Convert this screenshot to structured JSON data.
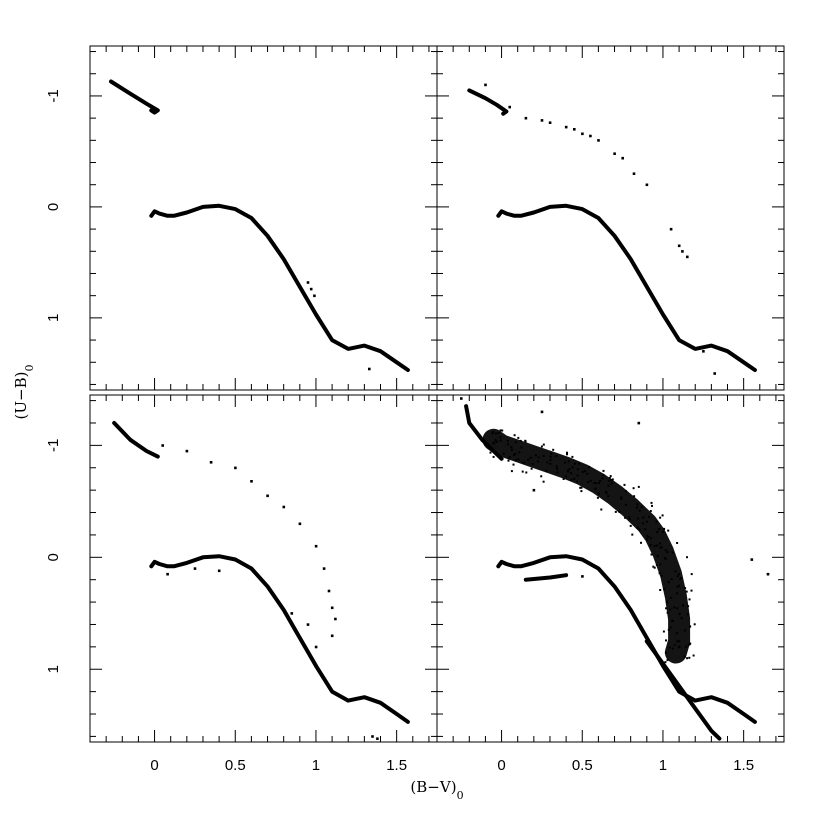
{
  "chart_data": [
    {
      "type": "scatter",
      "panel": "top-left",
      "xlim": [
        -0.4,
        1.75
      ],
      "ylim": [
        1.65,
        -1.45
      ],
      "y_inverted": true,
      "x_ticks": [],
      "y_ticks": [
        "-1",
        "0",
        "1"
      ],
      "curves": [
        {
          "points": [
            [
              -0.02,
              0.08
            ],
            [
              0.0,
              0.04
            ],
            [
              0.03,
              0.06
            ],
            [
              0.08,
              0.08
            ],
            [
              0.12,
              0.08
            ],
            [
              0.2,
              0.05
            ],
            [
              0.3,
              0.0
            ],
            [
              0.4,
              -0.01
            ],
            [
              0.5,
              0.02
            ],
            [
              0.6,
              0.1
            ],
            [
              0.7,
              0.26
            ],
            [
              0.8,
              0.47
            ],
            [
              0.9,
              0.72
            ],
            [
              1.0,
              0.97
            ],
            [
              1.1,
              1.2
            ],
            [
              1.2,
              1.28
            ],
            [
              1.3,
              1.25
            ],
            [
              1.4,
              1.3
            ],
            [
              1.5,
              1.4
            ],
            [
              1.57,
              1.47
            ]
          ]
        },
        {
          "points": [
            [
              -0.27,
              -1.13
            ],
            [
              -0.15,
              -1.02
            ],
            [
              -0.05,
              -0.93
            ],
            [
              0.02,
              -0.87
            ],
            [
              0.0,
              -0.85
            ],
            [
              -0.02,
              -0.87
            ]
          ]
        }
      ],
      "scatter": [
        [
          1.33,
          1.46
        ],
        [
          0.95,
          0.68
        ],
        [
          0.97,
          0.74
        ],
        [
          0.99,
          0.8
        ]
      ]
    },
    {
      "type": "scatter",
      "panel": "top-right",
      "xlim": [
        -0.4,
        1.75
      ],
      "ylim": [
        1.65,
        -1.45
      ],
      "y_inverted": true,
      "x_ticks": [],
      "y_ticks": [],
      "curves": [
        {
          "points": [
            [
              -0.02,
              0.08
            ],
            [
              0.0,
              0.04
            ],
            [
              0.03,
              0.06
            ],
            [
              0.08,
              0.08
            ],
            [
              0.12,
              0.08
            ],
            [
              0.2,
              0.05
            ],
            [
              0.3,
              0.0
            ],
            [
              0.4,
              -0.01
            ],
            [
              0.5,
              0.02
            ],
            [
              0.6,
              0.1
            ],
            [
              0.7,
              0.26
            ],
            [
              0.8,
              0.47
            ],
            [
              0.9,
              0.72
            ],
            [
              1.0,
              0.97
            ],
            [
              1.1,
              1.2
            ],
            [
              1.2,
              1.28
            ],
            [
              1.3,
              1.25
            ],
            [
              1.4,
              1.3
            ],
            [
              1.5,
              1.4
            ],
            [
              1.57,
              1.47
            ]
          ]
        },
        {
          "points": [
            [
              -0.2,
              -1.05
            ],
            [
              -0.1,
              -0.98
            ],
            [
              -0.03,
              -0.92
            ],
            [
              0.03,
              -0.86
            ],
            [
              0.01,
              -0.84
            ]
          ]
        }
      ],
      "scatter": [
        [
          -0.1,
          -1.1
        ],
        [
          0.05,
          -0.9
        ],
        [
          0.15,
          -0.8
        ],
        [
          0.25,
          -0.78
        ],
        [
          0.3,
          -0.76
        ],
        [
          0.4,
          -0.72
        ],
        [
          0.45,
          -0.7
        ],
        [
          0.5,
          -0.66
        ],
        [
          0.55,
          -0.64
        ],
        [
          0.6,
          -0.6
        ],
        [
          0.7,
          -0.48
        ],
        [
          0.75,
          -0.44
        ],
        [
          0.82,
          -0.3
        ],
        [
          0.9,
          -0.2
        ],
        [
          1.05,
          0.2
        ],
        [
          1.1,
          0.35
        ],
        [
          1.12,
          0.4
        ],
        [
          1.15,
          0.45
        ],
        [
          1.25,
          1.3
        ],
        [
          1.32,
          1.5
        ]
      ]
    },
    {
      "type": "scatter",
      "panel": "bottom-left",
      "xlim": [
        -0.4,
        1.75
      ],
      "ylim": [
        1.65,
        -1.45
      ],
      "y_inverted": true,
      "x_ticks": [
        "0",
        "0.5",
        "1",
        "1.5"
      ],
      "y_ticks": [
        "-1",
        "0",
        "1"
      ],
      "curves": [
        {
          "points": [
            [
              -0.02,
              0.08
            ],
            [
              0.0,
              0.04
            ],
            [
              0.03,
              0.06
            ],
            [
              0.08,
              0.08
            ],
            [
              0.12,
              0.08
            ],
            [
              0.2,
              0.05
            ],
            [
              0.3,
              0.0
            ],
            [
              0.4,
              -0.01
            ],
            [
              0.5,
              0.02
            ],
            [
              0.6,
              0.1
            ],
            [
              0.7,
              0.26
            ],
            [
              0.8,
              0.47
            ],
            [
              0.9,
              0.72
            ],
            [
              1.0,
              0.97
            ],
            [
              1.1,
              1.2
            ],
            [
              1.2,
              1.28
            ],
            [
              1.3,
              1.25
            ],
            [
              1.4,
              1.3
            ],
            [
              1.5,
              1.4
            ],
            [
              1.57,
              1.47
            ]
          ]
        },
        {
          "points": [
            [
              -0.25,
              -1.2
            ],
            [
              -0.15,
              -1.05
            ],
            [
              -0.05,
              -0.95
            ],
            [
              0.02,
              -0.9
            ]
          ]
        }
      ],
      "scatter": [
        [
          0.05,
          -1.0
        ],
        [
          0.2,
          -0.95
        ],
        [
          0.35,
          -0.85
        ],
        [
          0.5,
          -0.8
        ],
        [
          0.6,
          -0.68
        ],
        [
          0.7,
          -0.55
        ],
        [
          0.8,
          -0.45
        ],
        [
          0.9,
          -0.3
        ],
        [
          1.0,
          -0.1
        ],
        [
          1.05,
          0.1
        ],
        [
          1.08,
          0.3
        ],
        [
          1.1,
          0.45
        ],
        [
          1.12,
          0.55
        ],
        [
          1.1,
          0.7
        ],
        [
          1.0,
          0.8
        ],
        [
          0.95,
          0.6
        ],
        [
          0.85,
          0.5
        ],
        [
          0.25,
          0.1
        ],
        [
          0.4,
          0.12
        ],
        [
          0.08,
          0.15
        ],
        [
          1.35,
          1.6
        ],
        [
          1.38,
          1.62
        ]
      ]
    },
    {
      "type": "scatter",
      "panel": "bottom-right",
      "xlim": [
        -0.4,
        1.75
      ],
      "ylim": [
        1.65,
        -1.45
      ],
      "y_inverted": true,
      "x_ticks": [
        "0",
        "0.5",
        "1",
        "1.5"
      ],
      "y_ticks": [],
      "curves": [
        {
          "points": [
            [
              -0.02,
              0.08
            ],
            [
              0.0,
              0.04
            ],
            [
              0.03,
              0.06
            ],
            [
              0.08,
              0.08
            ],
            [
              0.12,
              0.08
            ],
            [
              0.2,
              0.05
            ],
            [
              0.3,
              0.0
            ],
            [
              0.4,
              -0.01
            ],
            [
              0.5,
              0.02
            ],
            [
              0.6,
              0.1
            ],
            [
              0.7,
              0.26
            ],
            [
              0.8,
              0.47
            ],
            [
              0.9,
              0.72
            ],
            [
              1.0,
              0.97
            ],
            [
              1.1,
              1.2
            ],
            [
              1.2,
              1.28
            ],
            [
              1.3,
              1.25
            ],
            [
              1.4,
              1.3
            ],
            [
              1.5,
              1.4
            ],
            [
              1.57,
              1.47
            ]
          ]
        },
        {
          "points": [
            [
              -0.22,
              -1.35
            ],
            [
              -0.2,
              -1.2
            ],
            [
              -0.12,
              -1.05
            ],
            [
              -0.05,
              -0.95
            ],
            [
              0.0,
              -0.88
            ]
          ]
        },
        {
          "points": [
            [
              0.9,
              0.75
            ],
            [
              1.05,
              1.05
            ],
            [
              1.2,
              1.35
            ],
            [
              1.3,
              1.55
            ],
            [
              1.35,
              1.62
            ]
          ]
        },
        {
          "points": [
            [
              0.15,
              0.2
            ],
            [
              0.3,
              0.18
            ],
            [
              0.4,
              0.16
            ]
          ]
        }
      ],
      "band": [
        [
          -0.05,
          -1.05
        ],
        [
          0.0,
          -1.0
        ],
        [
          0.1,
          -0.95
        ],
        [
          0.2,
          -0.9
        ],
        [
          0.3,
          -0.85
        ],
        [
          0.4,
          -0.8
        ],
        [
          0.5,
          -0.74
        ],
        [
          0.6,
          -0.66
        ],
        [
          0.7,
          -0.56
        ],
        [
          0.8,
          -0.44
        ],
        [
          0.9,
          -0.3
        ],
        [
          0.95,
          -0.2
        ],
        [
          1.0,
          -0.05
        ],
        [
          1.05,
          0.15
        ],
        [
          1.08,
          0.35
        ],
        [
          1.1,
          0.55
        ],
        [
          1.1,
          0.75
        ],
        [
          1.08,
          0.85
        ]
      ],
      "scatter": [
        [
          -0.25,
          -1.42
        ],
        [
          0.25,
          -1.3
        ],
        [
          0.85,
          -1.2
        ],
        [
          1.55,
          0.02
        ],
        [
          1.65,
          0.15
        ],
        [
          1.1,
          0.8
        ],
        [
          0.2,
          -0.6
        ],
        [
          0.5,
          0.17
        ]
      ]
    }
  ],
  "axes": {
    "xlabel": "(B−V)",
    "xlabel_sub": "0",
    "ylabel": "(U−B)",
    "ylabel_sub": "0"
  }
}
